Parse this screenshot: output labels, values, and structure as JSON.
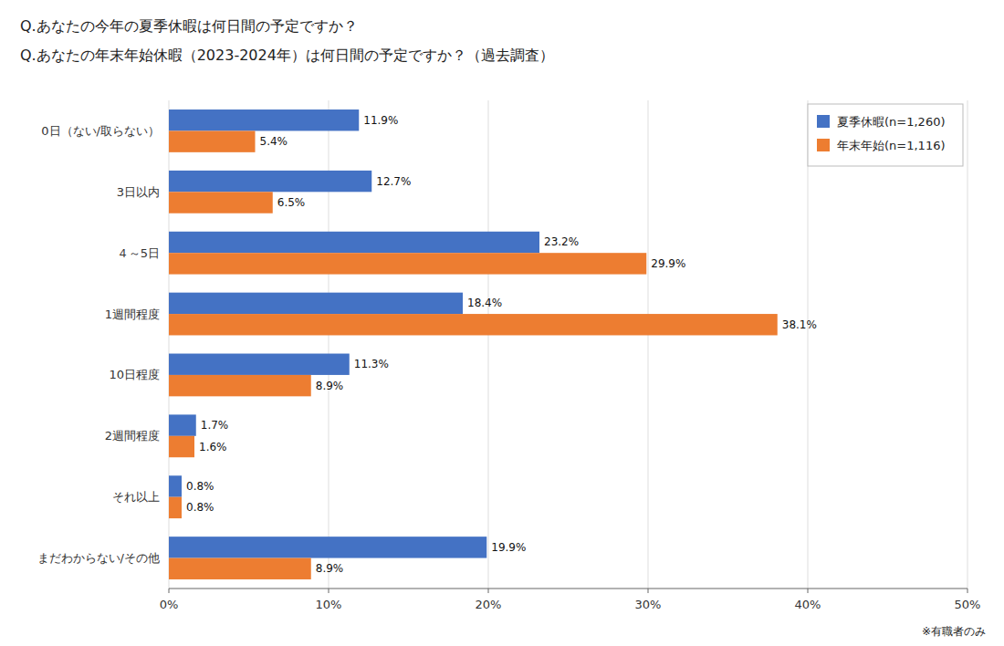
{
  "chart_data": {
    "type": "bar",
    "orientation": "horizontal",
    "title": "Q.あなたの今年の夏季休暇は何日間の予定ですか？",
    "subtitle": "Q.あなたの年末年始休暇（2023-2024年）は何日間の予定ですか？（過去調査）",
    "annotations": [
      "※有職者のみ"
    ],
    "categories": [
      "0日（ない/取らない）",
      "3日以内",
      "４～5日",
      "1週間程度",
      "10日程度",
      "2週間程度",
      "それ以上",
      "まだわからない/その他"
    ],
    "series": [
      {
        "name": "夏季休暇(n=1,260)",
        "color": "#4472C4",
        "values": [
          11.9,
          12.7,
          23.2,
          18.4,
          11.3,
          1.7,
          0.8,
          19.9
        ],
        "value_labels": [
          "11.9%",
          "12.7%",
          "23.2%",
          "18.4%",
          "11.3%",
          "1.7%",
          "0.8%",
          "19.9%"
        ]
      },
      {
        "name": "年末年始(n=1,116)",
        "color": "#ED7D31",
        "values": [
          5.4,
          6.5,
          29.9,
          38.1,
          8.9,
          1.6,
          0.8,
          8.9
        ],
        "value_labels": [
          "5.4%",
          "6.5%",
          "29.9%",
          "38.1%",
          "8.9%",
          "1.6%",
          "0.8%",
          "8.9%"
        ]
      }
    ],
    "xlim": [
      0,
      50
    ],
    "xticks": [
      {
        "value": 0,
        "label": "0%"
      },
      {
        "value": 10,
        "label": "10%"
      },
      {
        "value": 20,
        "label": "20%"
      },
      {
        "value": 30,
        "label": "30%"
      },
      {
        "value": 40,
        "label": "40%"
      },
      {
        "value": 50,
        "label": "50%"
      }
    ],
    "grid": true,
    "legend": "upper right",
    "data_labels": true
  }
}
